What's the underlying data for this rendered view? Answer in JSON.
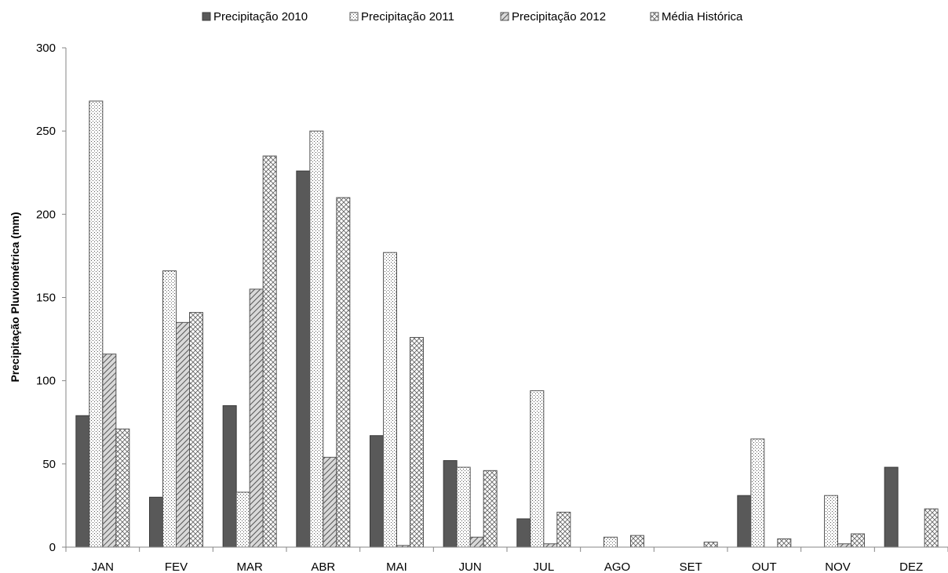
{
  "chart_data": {
    "type": "bar",
    "title": "",
    "xlabel": "",
    "ylabel": "Precipitação Pluviométrica (mm)",
    "ylim": [
      0,
      300
    ],
    "yticks": [
      0,
      50,
      100,
      150,
      200,
      250,
      300
    ],
    "grid": false,
    "legend_position": "top-center",
    "categories": [
      "JAN",
      "FEV",
      "MAR",
      "ABR",
      "MAI",
      "JUN",
      "JUL",
      "AGO",
      "SET",
      "OUT",
      "NOV",
      "DEZ"
    ],
    "series": [
      {
        "name": "Precipitação 2010",
        "pattern": "solid-dark",
        "values": [
          79,
          30,
          85,
          226,
          67,
          52,
          17,
          0,
          0,
          31,
          0,
          48
        ]
      },
      {
        "name": "Precipitação 2011",
        "pattern": "fine-dots",
        "values": [
          268,
          166,
          33,
          250,
          177,
          48,
          94,
          6,
          0,
          65,
          31,
          0
        ]
      },
      {
        "name": "Precipitação 2012",
        "pattern": "diagonal-stripes",
        "values": [
          116,
          135,
          155,
          54,
          1,
          6,
          2,
          0,
          0,
          0,
          2,
          0
        ]
      },
      {
        "name": "Média Histórica",
        "pattern": "crosshatch",
        "values": [
          71,
          141,
          235,
          210,
          126,
          46,
          21,
          7,
          3,
          5,
          8,
          23
        ]
      }
    ]
  }
}
